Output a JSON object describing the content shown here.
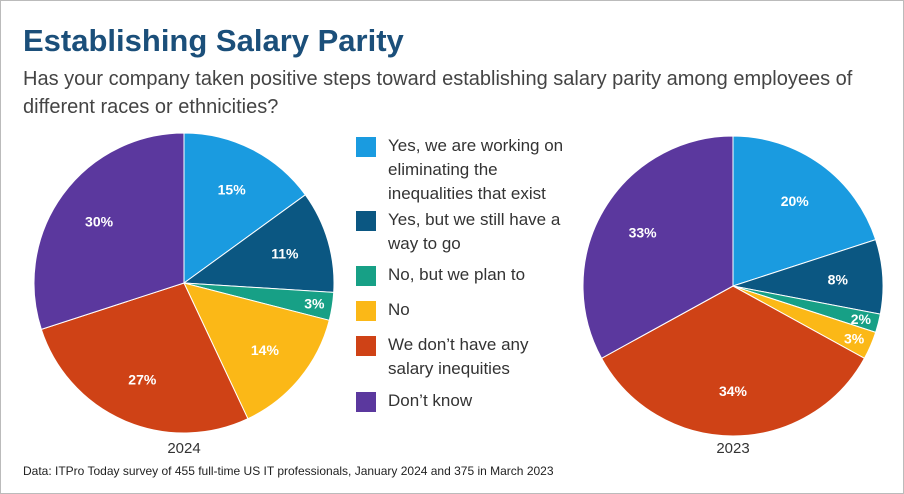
{
  "title": "Establishing Salary Parity",
  "subtitle": "Has your company taken positive steps toward establishing salary parity among employees of different races or ethnicities?",
  "legend": {
    "labels": [
      "Yes, we are working on eliminating the inequalities that exist",
      "Yes, but we still have a way to go",
      "No, but we plan to",
      "No",
      "We don’t have any salary inequities",
      "Don’t know"
    ],
    "colors": [
      "#1a9be0",
      "#0b5782",
      "#17a086",
      "#fbb817",
      "#cf4216",
      "#5b389e"
    ]
  },
  "source": "Data: ITPro Today survey of 455 full-time US IT professionals, January 2024 and 375 in March 2023",
  "chart_data": [
    {
      "type": "pie",
      "label": "2024",
      "values": [
        15,
        11,
        3,
        14,
        27,
        30
      ],
      "value_labels": [
        "15%",
        "11%",
        "3%",
        "14%",
        "27%",
        "30%"
      ]
    },
    {
      "type": "pie",
      "label": "2023",
      "values": [
        20,
        8,
        2,
        3,
        34,
        33
      ],
      "value_labels": [
        "20%",
        "8%",
        "2%",
        "3%",
        "34%",
        "33%"
      ]
    }
  ]
}
